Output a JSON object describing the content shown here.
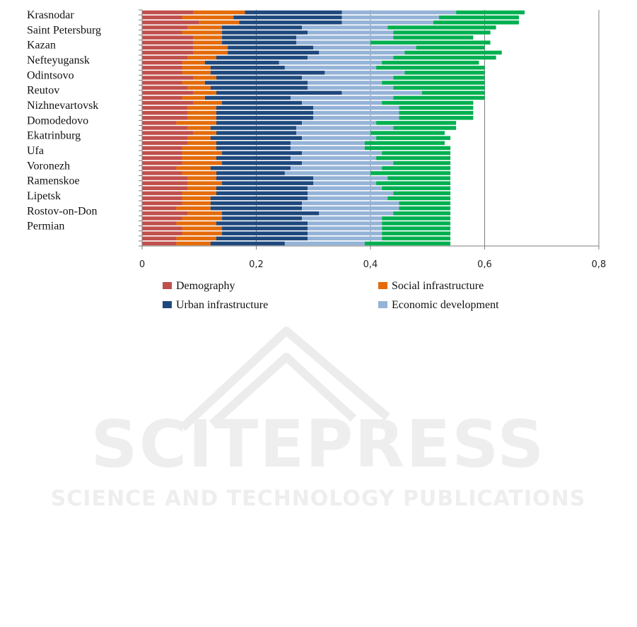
{
  "chart_data": {
    "type": "bar",
    "orientation": "horizontal",
    "stacked": true,
    "labeled_categories": [
      "Krasnodar",
      "Saint Petersburg",
      "Kazan",
      "Nefteyugansk",
      "Odintsovo",
      "Reutov",
      "Nizhnevartovsk",
      "Domodedovo",
      "Ekatrinburg",
      "Ufa",
      "Voronezh",
      "Ramenskoe",
      "Lipetsk",
      "Rostov-on-Don",
      "Permian"
    ],
    "series": [
      {
        "name": "Demography",
        "color": "#c0504d",
        "values": [
          0.09,
          0.07,
          0.1,
          0.08,
          0.07,
          0.09,
          0.09,
          0.09,
          0.09,
          0.08,
          0.07,
          0.07,
          0.07,
          0.09,
          0.07,
          0.08,
          0.09,
          0.07,
          0.09,
          0.08,
          0.08,
          0.08,
          0.06,
          0.08,
          0.09,
          0.08,
          0.08,
          0.07,
          0.07,
          0.07,
          0.07,
          0.06,
          0.07,
          0.08,
          0.08,
          0.08,
          0.07,
          0.07,
          0.07,
          0.06,
          0.08,
          0.07,
          0.06,
          0.07,
          0.07,
          0.06,
          0.06
        ]
      },
      {
        "name": "Social infrastructure",
        "color": "#e46c0a",
        "values": [
          0.09,
          0.09,
          0.07,
          0.06,
          0.07,
          0.05,
          0.05,
          0.06,
          0.06,
          0.05,
          0.04,
          0.05,
          0.05,
          0.04,
          0.04,
          0.04,
          0.04,
          0.04,
          0.05,
          0.05,
          0.05,
          0.05,
          0.07,
          0.04,
          0.04,
          0.04,
          0.05,
          0.06,
          0.07,
          0.06,
          0.07,
          0.06,
          0.06,
          0.05,
          0.06,
          0.05,
          0.06,
          0.05,
          0.05,
          0.06,
          0.06,
          0.07,
          0.07,
          0.07,
          0.07,
          0.07,
          0.06
        ]
      },
      {
        "name": "Urban infrastructure",
        "color": "#1f497d",
        "values": [
          0.17,
          0.19,
          0.18,
          0.14,
          0.15,
          0.13,
          0.13,
          0.15,
          0.16,
          0.16,
          0.13,
          0.13,
          0.2,
          0.15,
          0.18,
          0.17,
          0.22,
          0.15,
          0.14,
          0.17,
          0.17,
          0.17,
          0.15,
          0.15,
          0.14,
          0.16,
          0.13,
          0.13,
          0.14,
          0.13,
          0.14,
          0.14,
          0.12,
          0.17,
          0.16,
          0.16,
          0.16,
          0.17,
          0.16,
          0.16,
          0.17,
          0.14,
          0.16,
          0.15,
          0.15,
          0.16,
          0.13
        ]
      },
      {
        "name": "Economic development",
        "color": "#95b3d7",
        "values": [
          0.2,
          0.17,
          0.16,
          0.15,
          0.15,
          0.17,
          0.13,
          0.18,
          0.15,
          0.15,
          0.18,
          0.16,
          0.14,
          0.16,
          0.13,
          0.15,
          0.14,
          0.18,
          0.14,
          0.15,
          0.15,
          0.15,
          0.13,
          0.17,
          0.13,
          0.13,
          0.13,
          0.13,
          0.14,
          0.15,
          0.16,
          0.16,
          0.15,
          0.13,
          0.11,
          0.13,
          0.15,
          0.14,
          0.17,
          0.17,
          0.13,
          0.14,
          0.13,
          0.13,
          0.13,
          0.13,
          0.14
        ]
      },
      {
        "name": "",
        "color": "#00b050",
        "values": [
          0.12,
          0.14,
          0.15,
          0.19,
          0.17,
          0.14,
          0.21,
          0.12,
          0.17,
          0.18,
          0.17,
          0.19,
          0.14,
          0.16,
          0.18,
          0.16,
          0.11,
          0.16,
          0.16,
          0.13,
          0.13,
          0.13,
          0.14,
          0.11,
          0.13,
          0.13,
          0.14,
          0.15,
          0.12,
          0.13,
          0.1,
          0.12,
          0.14,
          0.11,
          0.13,
          0.12,
          0.1,
          0.11,
          0.09,
          0.09,
          0.1,
          0.12,
          0.12,
          0.12,
          0.12,
          0.12,
          0.15
        ]
      }
    ],
    "x_ticks": [
      "0",
      "0,2",
      "0,4",
      "0,6",
      "0,8"
    ],
    "xlim": [
      0,
      0.8
    ],
    "grid": "vertical",
    "legend": {
      "position": "bottom",
      "entries": [
        "Demography",
        "Social infrastructure",
        "Urban infrastructure",
        "Economic development"
      ]
    },
    "title": "",
    "xlabel": "",
    "ylabel": ""
  },
  "watermark": {
    "brand": "SCITEPRESS",
    "tagline": "SCIENCE AND TECHNOLOGY PUBLICATIONS"
  }
}
